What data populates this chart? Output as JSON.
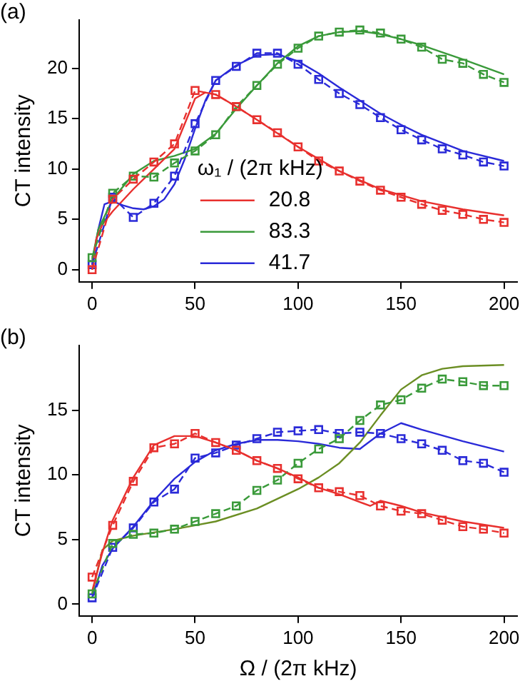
{
  "chart_data": [
    {
      "type": "line",
      "ylabel": "CT intensity",
      "legend_title": "ω₁ / (2π kHz)",
      "legend": "bottom",
      "grid": false,
      "annotations": [
        "(a)"
      ],
      "xlim": [
        -6.3,
        206.5
      ],
      "xticks": [
        0,
        50,
        100,
        150,
        200
      ],
      "ylim": [
        -1.2,
        24.8
      ],
      "yticks": [
        0,
        5,
        10,
        15,
        20
      ],
      "series": [
        {
          "color": "#e8302e",
          "marker": "square",
          "line_style": "dashed",
          "x": [
            0,
            10,
            20,
            30,
            40,
            50,
            60,
            70,
            80,
            90,
            100,
            110,
            120,
            130,
            140,
            150,
            160,
            170,
            180,
            190,
            200
          ],
          "values": [
            0,
            7.0,
            9.0,
            10.7,
            12.5,
            17.8,
            17.4,
            16.2,
            14.9,
            13.6,
            12.2,
            10.8,
            9.8,
            8.8,
            7.9,
            7.2,
            6.5,
            5.9,
            5.5,
            5.0,
            4.7
          ]
        },
        {
          "color": "#3a9a3a",
          "marker": "square",
          "line_style": "dashed",
          "x": [
            0,
            10,
            20,
            30,
            40,
            50,
            60,
            70,
            80,
            90,
            100,
            110,
            120,
            130,
            140,
            150,
            160,
            170,
            180,
            190,
            200
          ],
          "values": [
            1.2,
            7.6,
            9.3,
            9.2,
            10.6,
            11.8,
            13.4,
            16.2,
            18.3,
            20.4,
            22.0,
            23.2,
            23.6,
            23.8,
            23.5,
            22.9,
            22.1,
            20.9,
            20.5,
            19.4,
            18.6
          ]
        },
        {
          "color": "#2a2ad8",
          "marker": "square",
          "line_style": "dashed",
          "x": [
            0,
            10,
            20,
            30,
            40,
            50,
            60,
            70,
            80,
            90,
            100,
            110,
            120,
            130,
            140,
            150,
            160,
            170,
            180,
            190,
            200
          ],
          "values": [
            0.5,
            7.2,
            5.2,
            6.6,
            9.3,
            14.5,
            18.8,
            20.2,
            21.5,
            21.5,
            20.4,
            18.9,
            17.5,
            16.4,
            15.1,
            13.9,
            12.9,
            12.0,
            11.4,
            10.7,
            10.3
          ]
        },
        {
          "name": "20.8",
          "color": "#e8302e",
          "marker": "none",
          "line_style": "solid",
          "x": [
            0,
            2,
            5,
            10,
            20,
            30,
            40,
            45,
            50,
            55,
            60,
            70,
            80,
            100,
            120,
            140,
            160,
            180,
            200
          ],
          "values": [
            0,
            3,
            4.5,
            5.8,
            8,
            10,
            12,
            14.5,
            17,
            17.6,
            17.4,
            16.2,
            14.9,
            12.2,
            9.8,
            8.0,
            6.8,
            6.0,
            5.4
          ]
        },
        {
          "name": "83.3",
          "color": "#3a9a3a",
          "marker": "none",
          "line_style": "solid",
          "x": [
            0,
            3,
            10,
            20,
            30,
            40,
            50,
            60,
            70,
            80,
            90,
            100,
            110,
            120,
            130,
            140,
            150,
            160,
            180,
            200
          ],
          "values": [
            1,
            4,
            7,
            9.5,
            10.8,
            11.3,
            12,
            13.5,
            16,
            18.3,
            20.5,
            22.2,
            23.2,
            23.6,
            23.7,
            23.4,
            22.9,
            22.3,
            20.9,
            19.4
          ]
        },
        {
          "name": "41.7",
          "color": "#2a2ad8",
          "marker": "none",
          "line_style": "solid",
          "x": [
            0,
            3,
            6,
            10,
            15,
            20,
            25,
            30,
            35,
            40,
            45,
            50,
            55,
            60,
            70,
            80,
            90,
            100,
            110,
            120,
            130,
            140,
            150,
            160,
            180,
            200
          ],
          "values": [
            0.5,
            4,
            6.5,
            6.8,
            6.4,
            6.1,
            6.0,
            6.3,
            7.0,
            8.5,
            11,
            14.0,
            16.8,
            18.8,
            20.3,
            21.3,
            21.4,
            20.7,
            19.5,
            18.1,
            16.8,
            15.5,
            14.4,
            13.4,
            11.8,
            10.8
          ]
        }
      ]
    },
    {
      "type": "line",
      "xlabel": "Ω / (2π kHz)",
      "ylabel": "CT intensity",
      "grid": false,
      "annotations": [
        "(b)"
      ],
      "xlim": [
        -6.3,
        206.5
      ],
      "xticks": [
        0,
        50,
        100,
        150,
        200
      ],
      "ylim": [
        -0.9,
        20
      ],
      "yticks": [
        0,
        5,
        10,
        15
      ],
      "series": [
        {
          "color": "#e8302e",
          "marker": "square",
          "line_style": "dashed",
          "x": [
            0,
            10,
            20,
            30,
            40,
            50,
            60,
            70,
            80,
            90,
            100,
            110,
            120,
            130,
            140,
            150,
            160,
            170,
            180,
            190,
            200
          ],
          "values": [
            2.1,
            6.1,
            9.5,
            12.1,
            12.4,
            13.2,
            12.5,
            11.9,
            11.1,
            10.5,
            9.7,
            9.0,
            8.7,
            8.4,
            7.6,
            7.2,
            7.0,
            6.5,
            6.0,
            5.8,
            5.5
          ]
        },
        {
          "color": "#3a9a3a",
          "marker": "square",
          "line_style": "dashed",
          "x": [
            0,
            10,
            20,
            30,
            40,
            50,
            60,
            70,
            80,
            90,
            100,
            110,
            120,
            130,
            140,
            150,
            160,
            170,
            180,
            190,
            200
          ],
          "values": [
            0.8,
            4.7,
            5.4,
            5.5,
            5.8,
            6.4,
            7.0,
            7.6,
            8.8,
            9.6,
            10.9,
            12.0,
            12.8,
            14.2,
            15.4,
            15.8,
            16.7,
            17.4,
            17.2,
            16.9,
            16.9
          ]
        },
        {
          "color": "#2a2ad8",
          "marker": "square",
          "line_style": "dashed",
          "x": [
            0,
            10,
            20,
            30,
            40,
            50,
            60,
            70,
            80,
            90,
            100,
            110,
            120,
            130,
            140,
            150,
            160,
            170,
            180,
            190,
            200
          ],
          "values": [
            0.5,
            4.4,
            5.9,
            7.9,
            8.9,
            11.3,
            11.7,
            12.3,
            12.8,
            13.3,
            13.4,
            13.5,
            13.2,
            13.3,
            13.2,
            12.8,
            12.4,
            11.9,
            11.1,
            10.9,
            10.2
          ]
        },
        {
          "color": "#e8302e",
          "marker": "none",
          "line_style": "solid",
          "x": [
            0,
            5,
            10,
            20,
            30,
            40,
            50,
            60,
            70,
            80,
            90,
            100,
            110,
            120,
            130,
            135,
            140,
            150,
            160,
            180,
            200
          ],
          "values": [
            1,
            4,
            6.5,
            9.8,
            12.3,
            13.0,
            13.0,
            12.5,
            11.9,
            11.1,
            10.5,
            9.8,
            9.0,
            8.5,
            7.9,
            7.6,
            8.0,
            7.6,
            7.1,
            6.4,
            5.9
          ]
        },
        {
          "color": "#6b8e23",
          "marker": "none",
          "line_style": "solid",
          "x": [
            0,
            5,
            10,
            20,
            40,
            60,
            80,
            100,
            110,
            120,
            130,
            140,
            150,
            160,
            170,
            180,
            200
          ],
          "values": [
            0.8,
            4.2,
            4.9,
            5.3,
            5.8,
            6.4,
            7.4,
            8.9,
            9.8,
            10.9,
            12.5,
            14.6,
            16.6,
            17.7,
            18.2,
            18.4,
            18.5
          ]
        },
        {
          "color": "#2a2ad8",
          "marker": "none",
          "line_style": "solid",
          "x": [
            0,
            5,
            10,
            20,
            30,
            40,
            50,
            60,
            70,
            80,
            90,
            100,
            110,
            120,
            130,
            140,
            150,
            160,
            180,
            200
          ],
          "values": [
            0.5,
            3,
            4.3,
            6.0,
            8.0,
            9.7,
            11.0,
            11.9,
            12.4,
            12.7,
            12.7,
            12.6,
            12.4,
            12.1,
            12.0,
            13.2,
            14.0,
            13.5,
            12.6,
            11.8
          ]
        }
      ]
    }
  ]
}
